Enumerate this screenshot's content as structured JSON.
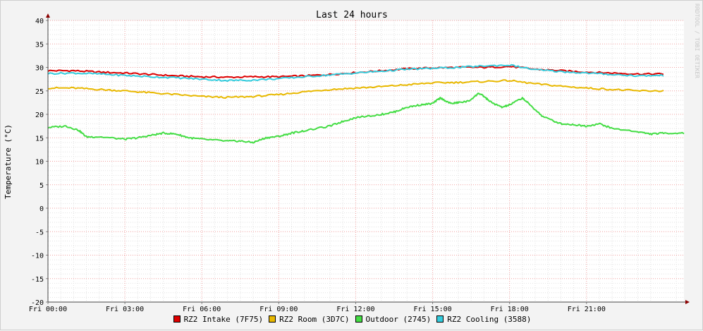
{
  "watermark": "RRDTOOL / TOBI OETIKER",
  "chart_data": {
    "type": "line",
    "title": "Last 24 hours",
    "ylabel": "Temperature (°C)",
    "xlabel": "",
    "ylim": [
      -20,
      40
    ],
    "yticks": [
      -20,
      -15,
      -10,
      -5,
      0,
      5,
      10,
      15,
      20,
      25,
      30,
      35,
      40
    ],
    "xlim": [
      0,
      24.8
    ],
    "xticks": [
      {
        "x": 0,
        "label": "Fri 00:00"
      },
      {
        "x": 3,
        "label": "Fri 03:00"
      },
      {
        "x": 6,
        "label": "Fri 06:00"
      },
      {
        "x": 9,
        "label": "Fri 09:00"
      },
      {
        "x": 12,
        "label": "Fri 12:00"
      },
      {
        "x": 15,
        "label": "Fri 15:00"
      },
      {
        "x": 18,
        "label": "Fri 18:00"
      },
      {
        "x": 21,
        "label": "Fri 21:00"
      }
    ],
    "grid": true,
    "legend_position": "bottom",
    "series": [
      {
        "name": "RZ2 Intake (7F75)",
        "color": "#dd0000",
        "points": [
          [
            0,
            29.3
          ],
          [
            1,
            29.3
          ],
          [
            2,
            29.0
          ],
          [
            3,
            28.8
          ],
          [
            4,
            28.5
          ],
          [
            5,
            28.2
          ],
          [
            6,
            28.0
          ],
          [
            7,
            27.9
          ],
          [
            8,
            28.0
          ],
          [
            9,
            28.0
          ],
          [
            10,
            28.2
          ],
          [
            11,
            28.5
          ],
          [
            12,
            28.9
          ],
          [
            13,
            29.3
          ],
          [
            14,
            29.7
          ],
          [
            15,
            29.9
          ],
          [
            16,
            30.0
          ],
          [
            17,
            30.0
          ],
          [
            18,
            30.2
          ],
          [
            19,
            29.6
          ],
          [
            20,
            29.3
          ],
          [
            21,
            29.0
          ],
          [
            22,
            28.8
          ],
          [
            23,
            28.6
          ],
          [
            24,
            28.6
          ]
        ]
      },
      {
        "name": "RZ2 Room (3D7C)",
        "color": "#e8b800",
        "points": [
          [
            0,
            25.6
          ],
          [
            1,
            25.6
          ],
          [
            2,
            25.3
          ],
          [
            3,
            25.0
          ],
          [
            4,
            24.6
          ],
          [
            5,
            24.2
          ],
          [
            6,
            23.8
          ],
          [
            7,
            23.6
          ],
          [
            8,
            23.8
          ],
          [
            9,
            24.2
          ],
          [
            10,
            24.8
          ],
          [
            11,
            25.3
          ],
          [
            12,
            25.6
          ],
          [
            13,
            25.9
          ],
          [
            14,
            26.3
          ],
          [
            15,
            26.7
          ],
          [
            16,
            26.8
          ],
          [
            17,
            27.0
          ],
          [
            18,
            27.2
          ],
          [
            19,
            26.5
          ],
          [
            20,
            26.0
          ],
          [
            21,
            25.6
          ],
          [
            22,
            25.3
          ],
          [
            23,
            25.0
          ],
          [
            24,
            25.0
          ]
        ]
      },
      {
        "name": "Outdoor (2745)",
        "color": "#44dd44",
        "points": [
          [
            0,
            17.2
          ],
          [
            0.7,
            17.5
          ],
          [
            1.2,
            16.6
          ],
          [
            1.5,
            15.2
          ],
          [
            2,
            15.2
          ],
          [
            3,
            14.7
          ],
          [
            3.5,
            15.0
          ],
          [
            4,
            15.5
          ],
          [
            4.5,
            16.0
          ],
          [
            5,
            15.8
          ],
          [
            5.5,
            15.0
          ],
          [
            6,
            14.7
          ],
          [
            7,
            14.3
          ],
          [
            7.5,
            14.3
          ],
          [
            8,
            14.0
          ],
          [
            8.5,
            15.0
          ],
          [
            9,
            15.3
          ],
          [
            9.5,
            16.0
          ],
          [
            10,
            16.5
          ],
          [
            11,
            17.5
          ],
          [
            11.5,
            18.5
          ],
          [
            12,
            19.3
          ],
          [
            13,
            20.0
          ],
          [
            13.5,
            20.5
          ],
          [
            14,
            21.5
          ],
          [
            14.5,
            22.0
          ],
          [
            15,
            22.3
          ],
          [
            15.3,
            23.5
          ],
          [
            15.7,
            22.3
          ],
          [
            16,
            22.5
          ],
          [
            16.4,
            22.8
          ],
          [
            16.8,
            24.5
          ],
          [
            17,
            23.8
          ],
          [
            17.3,
            22.5
          ],
          [
            17.7,
            21.5
          ],
          [
            18,
            22.0
          ],
          [
            18.5,
            23.5
          ],
          [
            18.8,
            22.0
          ],
          [
            19.3,
            19.5
          ],
          [
            20,
            18.0
          ],
          [
            20.5,
            17.8
          ],
          [
            21,
            17.5
          ],
          [
            21.5,
            18.0
          ],
          [
            22,
            17.0
          ],
          [
            23,
            16.3
          ],
          [
            23.5,
            15.8
          ],
          [
            24,
            16.0
          ],
          [
            24.8,
            16.0
          ]
        ]
      },
      {
        "name": "RZ2 Cooling (3588)",
        "color": "#33ccdd",
        "points": [
          [
            0,
            28.7
          ],
          [
            1,
            28.8
          ],
          [
            2,
            28.6
          ],
          [
            3,
            28.3
          ],
          [
            4,
            28.0
          ],
          [
            5,
            27.8
          ],
          [
            6,
            27.5
          ],
          [
            7,
            27.2
          ],
          [
            8,
            27.3
          ],
          [
            9,
            27.6
          ],
          [
            10,
            28.0
          ],
          [
            11,
            28.4
          ],
          [
            12,
            28.8
          ],
          [
            13,
            29.2
          ],
          [
            14,
            29.6
          ],
          [
            15,
            29.8
          ],
          [
            16,
            30.0
          ],
          [
            17,
            30.3
          ],
          [
            18,
            30.5
          ],
          [
            19,
            29.5
          ],
          [
            20,
            29.1
          ],
          [
            21,
            28.8
          ],
          [
            22,
            28.5
          ],
          [
            23,
            28.2
          ],
          [
            24,
            28.3
          ]
        ]
      }
    ]
  }
}
